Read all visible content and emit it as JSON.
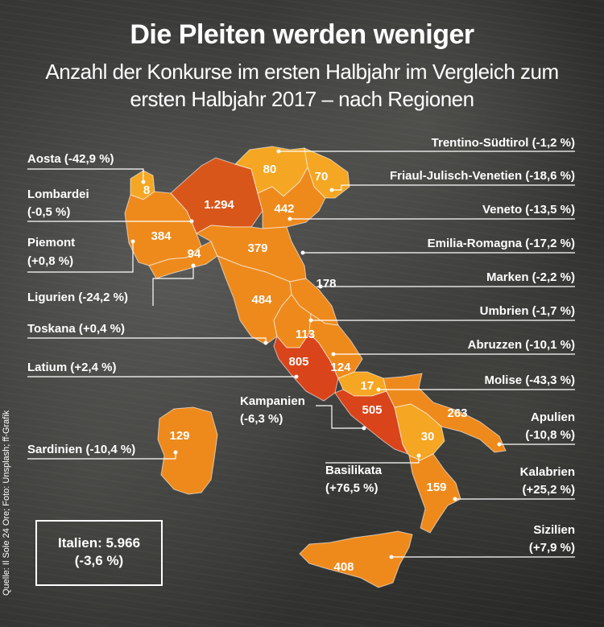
{
  "header": {
    "title": "Die Pleiten werden weniger",
    "subtitle": "Anzahl der Konkurse im ersten Halbjahr im Vergleich zum ersten Halbjahr 2017 – nach Regionen"
  },
  "colors": {
    "light": "#f5a623",
    "medium": "#ee8a1c",
    "dark": "#d9561a",
    "darkest": "#d9441a"
  },
  "regions": [
    {
      "id": "aosta",
      "name": "Aosta (-42,9 %)",
      "value": "8"
    },
    {
      "id": "lombardei",
      "name1": "Lombardei",
      "name2": "(-0,5 %)",
      "value": "1.294"
    },
    {
      "id": "piemont",
      "name1": "Piemont",
      "name2": "(+0,8 %)",
      "value": "384"
    },
    {
      "id": "ligurien",
      "name": "Ligurien (-24,2 %)",
      "value": "94"
    },
    {
      "id": "toskana",
      "name": "Toskana (+0,4 %)",
      "value": "484"
    },
    {
      "id": "latium",
      "name": "Latium (+2,4 %)",
      "value": "805"
    },
    {
      "id": "sardinien",
      "name": "Sardinien (-10,4 %)",
      "value": "129"
    },
    {
      "id": "kampanien",
      "name1": "Kampanien",
      "name2": "(-6,3 %)",
      "value": "505"
    },
    {
      "id": "basilikata",
      "name1": "Basilikata",
      "name2": "(+76,5 %)",
      "value": "30"
    },
    {
      "id": "trentino",
      "name": "Trentino-Südtirol (-1,2 %)",
      "value": "80"
    },
    {
      "id": "friaul",
      "name": "Friaul-Julisch-Venetien (-18,6 %)",
      "value": "70"
    },
    {
      "id": "veneto",
      "name": "Veneto (-13,5 %)",
      "value": "442"
    },
    {
      "id": "emilia",
      "name": "Emilia-Romagna (-17,2 %)",
      "value": "379"
    },
    {
      "id": "marken",
      "name": "Marken (-2,2 %)",
      "value": "178"
    },
    {
      "id": "umbrien",
      "name": "Umbrien (-1,7 %)",
      "value": "113"
    },
    {
      "id": "abruzzen",
      "name": "Abruzzen (-10,1 %)",
      "value": "124"
    },
    {
      "id": "molise",
      "name": "Molise (-43,3 %)",
      "value": "17"
    },
    {
      "id": "apulien",
      "name1": "Apulien",
      "name2": "(-10,8 %)",
      "value": "263"
    },
    {
      "id": "kalabrien",
      "name1": "Kalabrien",
      "name2": "(+25,2 %)",
      "value": "159"
    },
    {
      "id": "sizilien",
      "name1": "Sizilien",
      "name2": "(+7,9 %)",
      "value": "408"
    }
  ],
  "total": {
    "line1": "Italien: 5.966",
    "line2": "(-3,6 %)"
  },
  "source": "Quelle: Il Sole 24 Ore; Foto: Unsplash; ff-Grafik"
}
